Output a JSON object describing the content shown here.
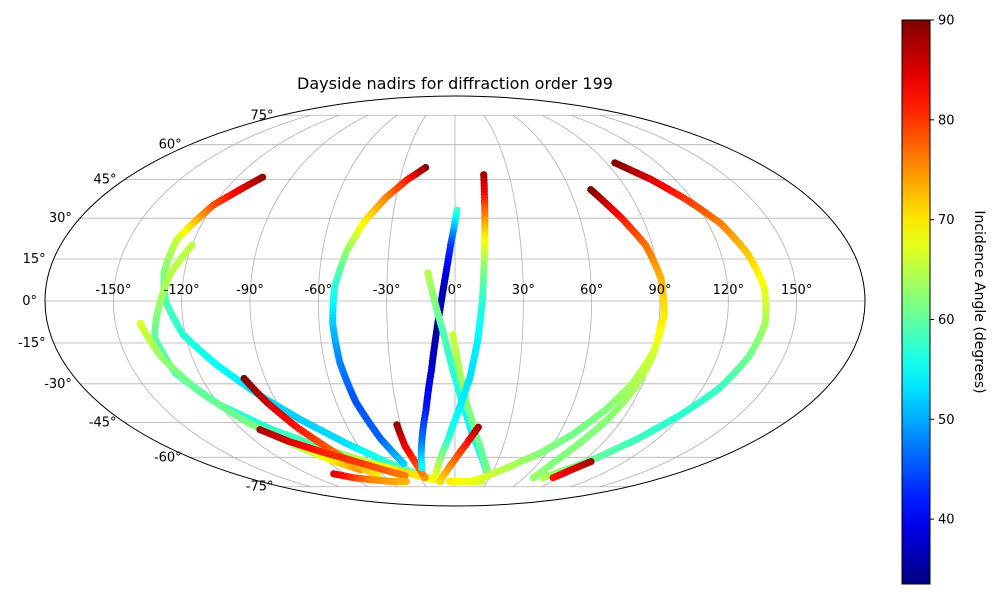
{
  "chart_data": {
    "type": "scatter",
    "projection": "mollweide",
    "title": "Dayside nadirs for diffraction order 199",
    "grid": true,
    "longitude_ticks": [
      "-150°",
      "-120°",
      "-90°",
      "-60°",
      "-30°",
      "0°",
      "30°",
      "60°",
      "90°",
      "120°",
      "150°"
    ],
    "longitude_tick_values": [
      -150,
      -120,
      -90,
      -60,
      -30,
      0,
      30,
      60,
      90,
      120,
      150
    ],
    "latitude_ticks": [
      "-75°",
      "-60°",
      "-45°",
      "-30°",
      "-15°",
      "0°",
      "15°",
      "30°",
      "45°",
      "60°",
      "75°"
    ],
    "latitude_tick_values": [
      -75,
      -60,
      -45,
      -30,
      -15,
      0,
      15,
      30,
      45,
      60,
      75
    ],
    "colorbar": {
      "label": "Incidence Angle (degrees)",
      "colormap": "jet",
      "range": [
        33.5,
        90
      ],
      "ticks": [
        "40",
        "50",
        "60",
        "70",
        "80",
        "90"
      ],
      "tick_values": [
        40,
        50,
        60,
        70,
        80,
        90
      ]
    },
    "series": [
      {
        "points": [
          [
            -106,
            46,
            89
          ],
          [
            -120,
            35,
            79
          ],
          [
            -128,
            22,
            66
          ],
          [
            -129,
            10,
            62
          ],
          [
            -127,
            0,
            59
          ],
          [
            -121,
            -12,
            57
          ],
          [
            -110,
            -23,
            55
          ],
          [
            -97,
            -34,
            53
          ],
          [
            -83,
            -44,
            52
          ],
          [
            -66,
            -54,
            53
          ],
          [
            -49,
            -62,
            57
          ],
          [
            -32,
            -68,
            61
          ],
          [
            -13,
            -72,
            64
          ]
        ]
      },
      {
        "points": [
          [
            -120,
            20,
            65
          ],
          [
            -126,
            10,
            65
          ],
          [
            -130,
            -2,
            63
          ],
          [
            -134,
            -13,
            60
          ],
          [
            -131,
            -26,
            57
          ],
          [
            -120,
            -38,
            56
          ],
          [
            -103,
            -48,
            57
          ],
          [
            -83,
            -56,
            60
          ],
          [
            -63,
            -62,
            66
          ],
          [
            -42,
            -67,
            71
          ],
          [
            -20,
            -71,
            69
          ]
        ]
      },
      {
        "points": [
          [
            -139,
            -8,
            67
          ],
          [
            -134,
            -20,
            63
          ],
          [
            -125,
            -33,
            60
          ],
          [
            -113,
            -45,
            61
          ],
          [
            -98,
            -55,
            64
          ],
          [
            -85,
            -62,
            70
          ],
          [
            -73,
            -66,
            75
          ]
        ]
      },
      {
        "points": [
          [
            -100,
            -28,
            90
          ],
          [
            -95,
            -37,
            86
          ],
          [
            -88,
            -47,
            82
          ],
          [
            -80,
            -56,
            78
          ],
          [
            -73,
            -63,
            74
          ],
          [
            -65,
            -69,
            70
          ]
        ]
      },
      {
        "points": [
          [
            -110,
            -48,
            88
          ],
          [
            -100,
            -53,
            85
          ],
          [
            -85,
            -58,
            81
          ],
          [
            -70,
            -62,
            80
          ],
          [
            -55,
            -66,
            78
          ],
          [
            -42,
            -69,
            76
          ]
        ]
      },
      {
        "points": [
          [
            -99,
            -68,
            85
          ],
          [
            -88,
            -70,
            80
          ],
          [
            -76,
            -71,
            76
          ],
          [
            -60,
            -72,
            74
          ],
          [
            -45,
            -72,
            73
          ]
        ]
      },
      {
        "points": [
          [
            -17,
            50,
            90
          ],
          [
            -26,
            45,
            82
          ],
          [
            -35,
            38,
            76
          ],
          [
            -43,
            29,
            70
          ],
          [
            -49,
            18,
            63
          ],
          [
            -53,
            5,
            57
          ],
          [
            -54,
            -8,
            52
          ],
          [
            -53,
            -22,
            48
          ],
          [
            -50,
            -37,
            45
          ],
          [
            -44,
            -52,
            46
          ],
          [
            -37,
            -63,
            52
          ]
        ]
      },
      {
        "points": [
          [
            -32,
            -46,
            89
          ],
          [
            -31,
            -55,
            84
          ],
          [
            -28,
            -63,
            80
          ],
          [
            -26,
            -70,
            75
          ]
        ]
      },
      {
        "points": [
          [
            1,
            33,
            58
          ],
          [
            -2,
            20,
            44
          ],
          [
            -5,
            5,
            37
          ],
          [
            -8,
            -10,
            35
          ],
          [
            -11,
            -25,
            38
          ],
          [
            -15,
            -40,
            42
          ],
          [
            -20,
            -53,
            47
          ],
          [
            -25,
            -65,
            55
          ]
        ]
      },
      {
        "points": [
          [
            -12,
            10,
            65
          ],
          [
            -9,
            0,
            62
          ],
          [
            -5,
            -12,
            59
          ],
          [
            -1,
            -25,
            57
          ],
          [
            4,
            -38,
            55
          ],
          [
            10,
            -50,
            54
          ],
          [
            18,
            -60,
            55
          ],
          [
            26,
            -68,
            58
          ]
        ]
      },
      {
        "points": [
          [
            -1,
            -12,
            66
          ],
          [
            2,
            -25,
            64
          ],
          [
            6,
            -38,
            62
          ],
          [
            12,
            -50,
            61
          ],
          [
            19,
            -60,
            60
          ],
          [
            26,
            -67,
            62
          ]
        ]
      },
      {
        "points": [
          [
            16,
            47,
            88
          ],
          [
            15,
            38,
            82
          ],
          [
            14,
            26,
            72
          ],
          [
            13,
            13,
            63
          ],
          [
            12,
            0,
            57
          ],
          [
            10,
            -15,
            54
          ],
          [
            7,
            -28,
            53
          ],
          [
            2,
            -40,
            54
          ],
          [
            -4,
            -52,
            57
          ],
          [
            -11,
            -62,
            63
          ],
          [
            -17,
            -70,
            68
          ]
        ]
      },
      {
        "points": [
          [
            13,
            -47,
            88
          ],
          [
            7,
            -54,
            82
          ],
          [
            0,
            -61,
            78
          ],
          [
            -7,
            -67,
            74
          ],
          [
            -14,
            -72,
            71
          ]
        ]
      },
      {
        "points": [
          [
            -5,
            -72,
            70
          ],
          [
            10,
            -72,
            68
          ],
          [
            25,
            -72,
            66
          ]
        ]
      },
      {
        "points": [
          [
            71,
            41,
            90
          ],
          [
            80,
            30,
            82
          ],
          [
            87,
            20,
            77
          ],
          [
            91,
            8,
            73
          ],
          [
            92,
            -5,
            70
          ],
          [
            90,
            -18,
            67
          ],
          [
            85,
            -30,
            64
          ],
          [
            78,
            -40,
            62
          ],
          [
            68,
            -50,
            61
          ],
          [
            56,
            -58,
            62
          ],
          [
            42,
            -64,
            64
          ],
          [
            28,
            -69,
            66
          ],
          [
            15,
            -72,
            68
          ]
        ]
      },
      {
        "points": [
          [
            91,
            -8,
            70
          ],
          [
            90,
            -20,
            66
          ],
          [
            87,
            -32,
            64
          ],
          [
            82,
            -44,
            62
          ],
          [
            75,
            -55,
            62
          ],
          [
            70,
            -63,
            62
          ],
          [
            68,
            -70,
            63
          ]
        ]
      },
      {
        "points": [
          [
            95,
            52,
            90
          ],
          [
            107,
            45,
            85
          ],
          [
            117,
            37,
            80
          ],
          [
            126,
            28,
            76
          ],
          [
            132,
            17,
            72
          ],
          [
            136,
            5,
            68
          ],
          [
            137,
            -8,
            64
          ],
          [
            134,
            -20,
            61
          ],
          [
            128,
            -32,
            58
          ],
          [
            119,
            -42,
            57
          ],
          [
            108,
            -52,
            58
          ],
          [
            97,
            -60,
            60
          ],
          [
            86,
            -66,
            62
          ],
          [
            76,
            -70,
            64
          ]
        ]
      },
      {
        "points": [
          [
            96,
            -62,
            88
          ],
          [
            90,
            -66,
            85
          ],
          [
            85,
            -70,
            82
          ]
        ]
      }
    ]
  }
}
